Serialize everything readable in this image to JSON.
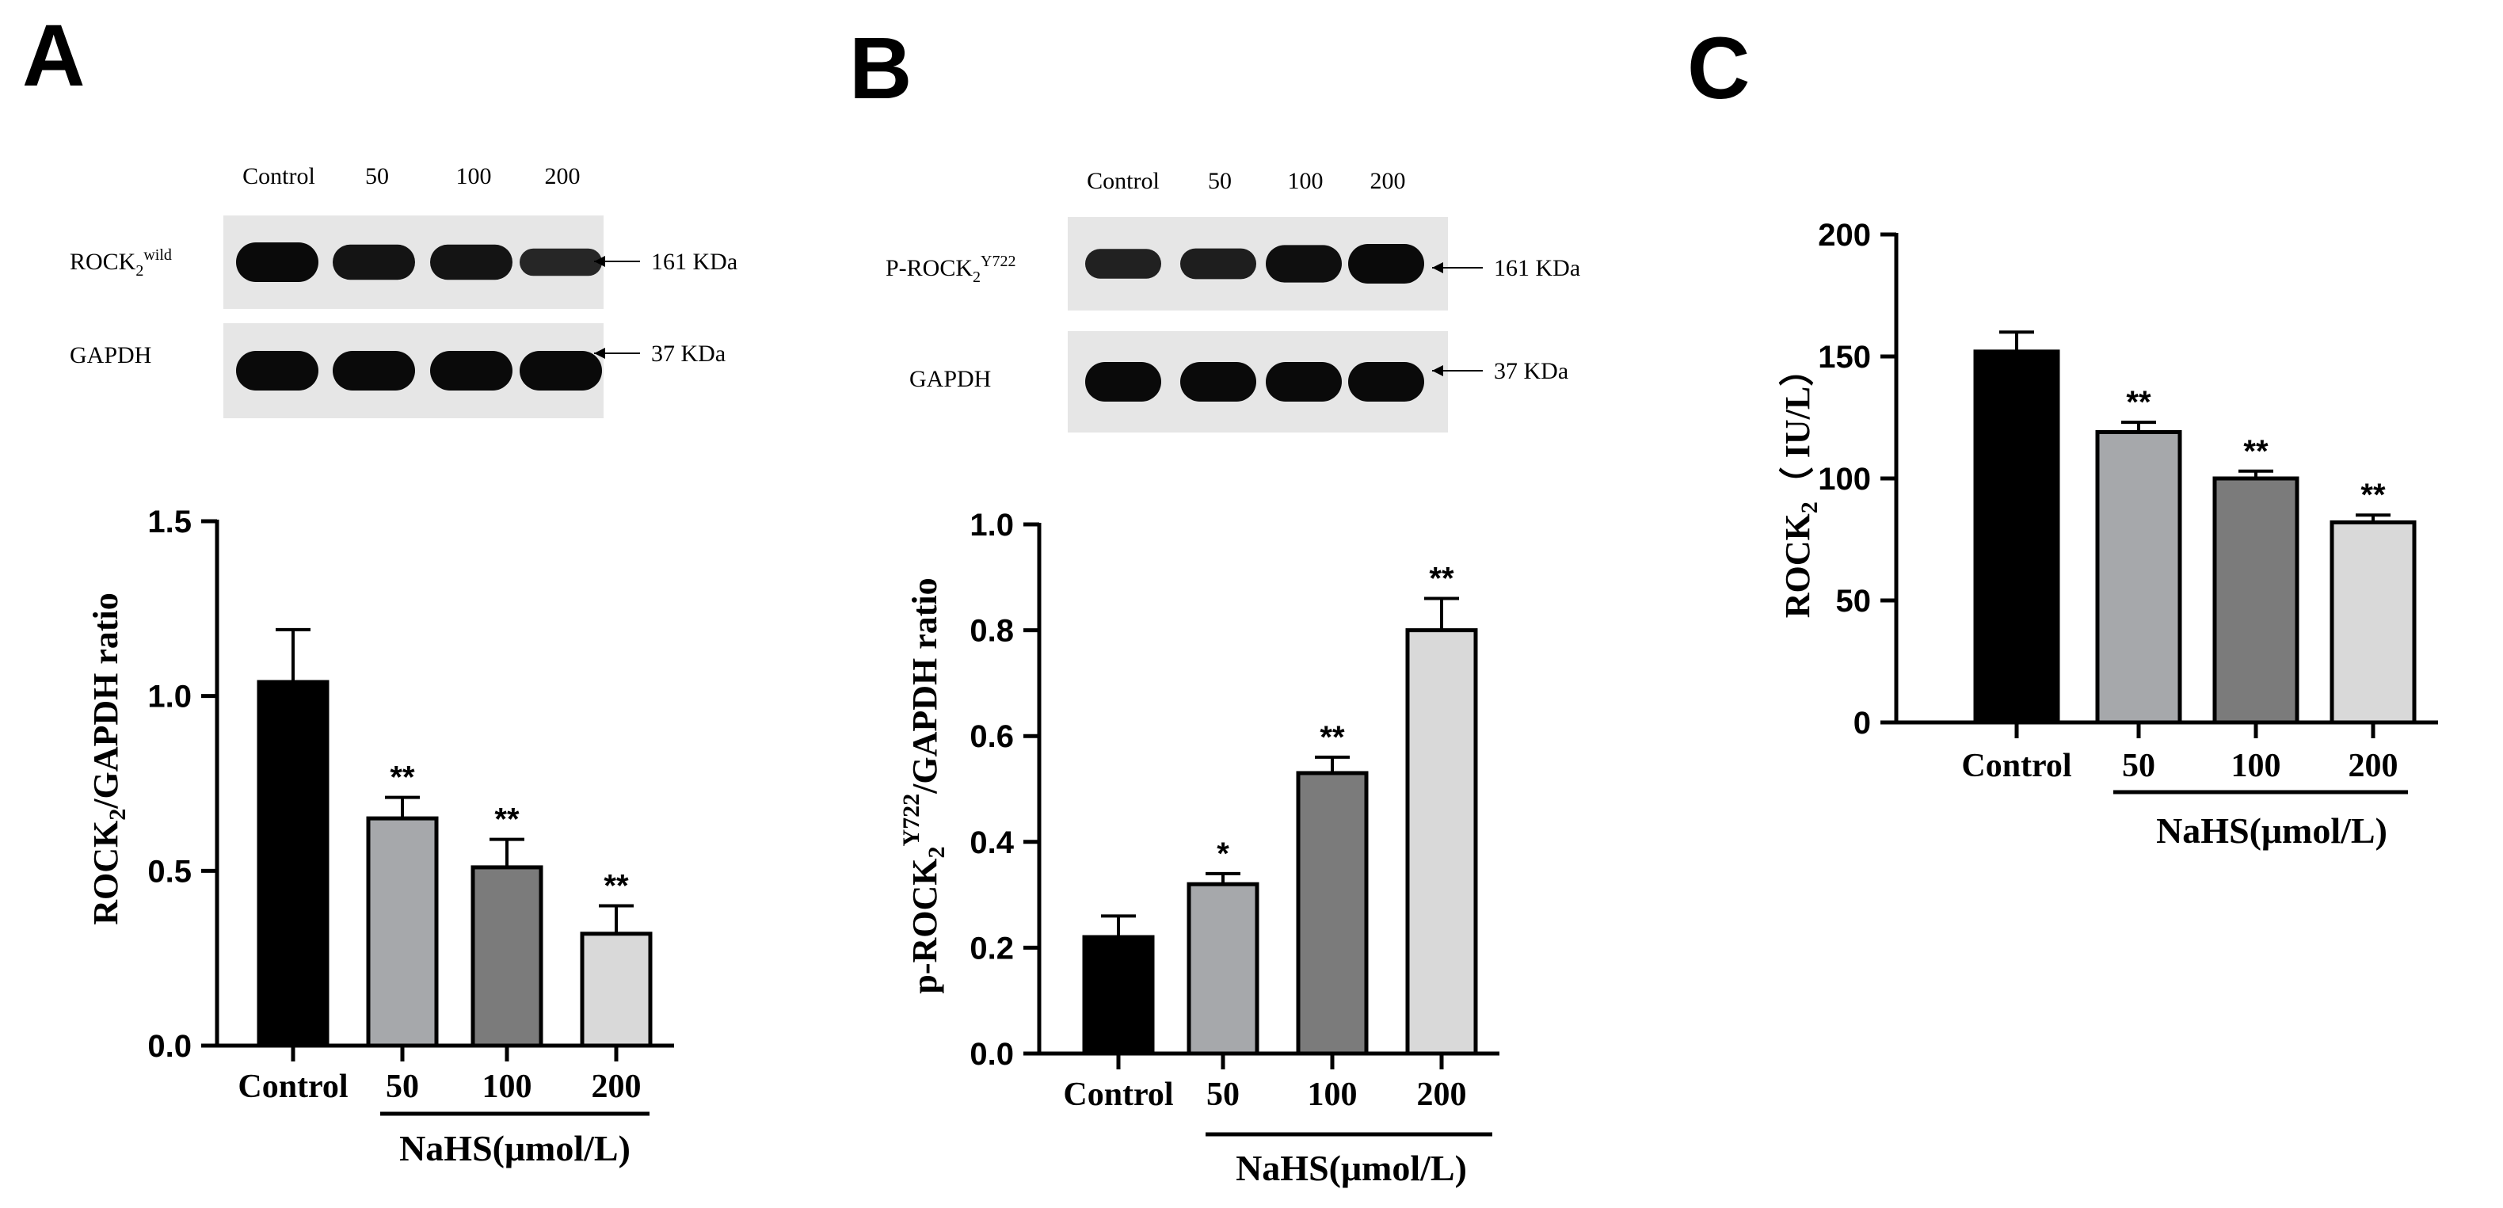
{
  "panels": {
    "A": {
      "letter": "A",
      "blot": {
        "lanes": [
          "Control",
          "50",
          "100",
          "200"
        ],
        "rows": [
          {
            "label": "ROCK",
            "sub": "2",
            "sup": "wild",
            "kda": "161 KDa",
            "intensity": [
              1.0,
              0.8,
              0.8,
              0.45
            ]
          },
          {
            "label": "GAPDH",
            "sub": "",
            "sup": "",
            "kda": "37 KDa",
            "intensity": [
              1.0,
              1.0,
              1.0,
              1.0
            ]
          }
        ]
      },
      "ylabel": {
        "main": "ROCK",
        "sub": "2",
        "rest": "/GAPDH ratio"
      },
      "group_label": "NaHS(μmol/L)"
    },
    "B": {
      "letter": "B",
      "blot": {
        "lanes": [
          "Control",
          "50",
          "100",
          "200"
        ],
        "rows": [
          {
            "label": "P-ROCK",
            "sub": "2",
            "sup": "Y722",
            "kda": "161 KDa",
            "intensity": [
              0.55,
              0.6,
              0.9,
              1.0
            ]
          },
          {
            "label": "GAPDH",
            "sub": "",
            "sup": "",
            "kda": "37 KDa",
            "intensity": [
              1.0,
              1.0,
              1.0,
              1.0
            ]
          }
        ]
      },
      "ylabel": {
        "main": "p-ROCK",
        "sub": "2",
        "sup": "Y722",
        "rest": "/GAPDH ratio"
      },
      "group_label": "NaHS(μmol/L)"
    },
    "C": {
      "letter": "C",
      "ylabel": {
        "main": "ROCK",
        "sub": "2",
        "rest": "（ IU/L）"
      },
      "group_label": "NaHS(μmol/L)"
    }
  },
  "chart_data": [
    {
      "type": "bar",
      "panel": "A",
      "categories": [
        "Control",
        "50",
        "100",
        "200"
      ],
      "values": [
        1.04,
        0.65,
        0.51,
        0.32
      ],
      "errors": [
        0.15,
        0.06,
        0.08,
        0.08
      ],
      "significance": [
        "",
        "**",
        "**",
        "**"
      ],
      "ylim": [
        0,
        1.5
      ],
      "yticks": [
        "0.0",
        "0.5",
        "1.0",
        "1.5"
      ],
      "ytick_values": [
        0,
        0.5,
        1.0,
        1.5
      ],
      "colors": [
        "#000000",
        "#a6a8ab",
        "#7b7b7b",
        "#d9d9d9"
      ],
      "xlabel": "NaHS(μmol/L)",
      "ylabel": "ROCK2/GAPDH ratio"
    },
    {
      "type": "bar",
      "panel": "B",
      "categories": [
        "Control",
        "50",
        "100",
        "200"
      ],
      "values": [
        0.22,
        0.32,
        0.53,
        0.8
      ],
      "errors": [
        0.04,
        0.02,
        0.03,
        0.06
      ],
      "significance": [
        "",
        "*",
        "**",
        "**"
      ],
      "ylim": [
        0,
        1.0
      ],
      "yticks": [
        "0.0",
        "0.2",
        "0.4",
        "0.6",
        "0.8",
        "1.0"
      ],
      "ytick_values": [
        0,
        0.2,
        0.4,
        0.6,
        0.8,
        1.0
      ],
      "colors": [
        "#000000",
        "#a6a8ab",
        "#7b7b7b",
        "#d9d9d9"
      ],
      "xlabel": "NaHS(μmol/L)",
      "ylabel": "p-ROCK2Y722/GAPDH ratio"
    },
    {
      "type": "bar",
      "panel": "C",
      "categories": [
        "Control",
        "50",
        "100",
        "200"
      ],
      "values": [
        152,
        119,
        100,
        82
      ],
      "errors": [
        8,
        4,
        3,
        3
      ],
      "significance": [
        "",
        "**",
        "**",
        "**"
      ],
      "ylim": [
        0,
        200
      ],
      "yticks": [
        "0",
        "50",
        "100",
        "150",
        "200"
      ],
      "ytick_values": [
        0,
        50,
        100,
        150,
        200
      ],
      "colors": [
        "#000000",
        "#a6a8ab",
        "#7b7b7b",
        "#d9d9d9"
      ],
      "xlabel": "NaHS(μmol/L)",
      "ylabel": "ROCK2（ IU/L）"
    }
  ]
}
